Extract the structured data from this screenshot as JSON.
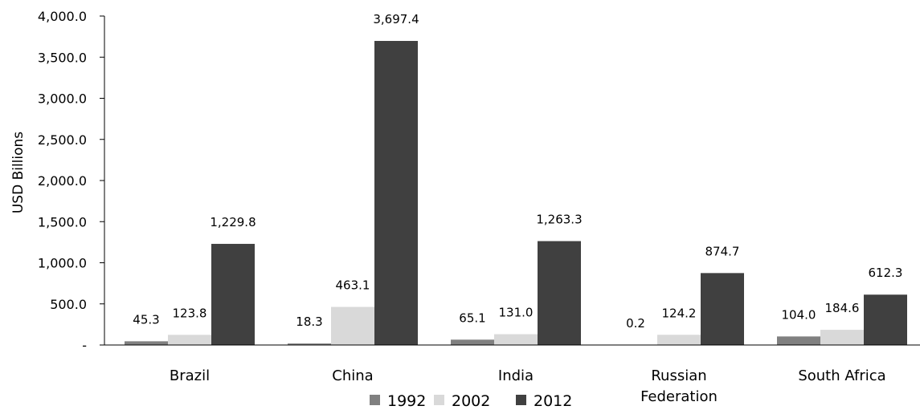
{
  "chart_data": {
    "type": "bar",
    "title": "",
    "xlabel": "",
    "ylabel": "USD Billions",
    "ylim": [
      0,
      4000
    ],
    "yticks": [
      0,
      500,
      1000,
      1500,
      2000,
      2500,
      3000,
      3500,
      4000
    ],
    "ytick_labels": [
      "-",
      "500.0",
      "1,000.0",
      "1,500.0",
      "2,000.0",
      "2,500.0",
      "3,000.0",
      "3,500.0",
      "4,000.0"
    ],
    "categories": [
      [
        "Brazil"
      ],
      [
        "China"
      ],
      [
        "India"
      ],
      [
        "Russian",
        "Federation"
      ],
      [
        "South Africa"
      ]
    ],
    "grid": false,
    "legend_position": "bottom",
    "series": [
      {
        "name": "1992",
        "color": "#808080",
        "values": [
          45.3,
          18.3,
          65.1,
          0.2,
          104.0
        ],
        "labels": [
          "45.3",
          "18.3",
          "65.1",
          "0.2",
          "104.0"
        ]
      },
      {
        "name": "2002",
        "color": "#d9d9d9",
        "values": [
          123.8,
          463.1,
          131.0,
          124.2,
          184.6
        ],
        "labels": [
          "123.8",
          "463.1",
          "131.0",
          "124.2",
          "184.6"
        ]
      },
      {
        "name": "2012",
        "color": "#404040",
        "values": [
          1229.8,
          3697.4,
          1263.3,
          874.7,
          612.3
        ],
        "labels": [
          "1,229.8",
          "3,697.4",
          "1,263.3",
          "874.7",
          "612.3"
        ]
      }
    ]
  }
}
